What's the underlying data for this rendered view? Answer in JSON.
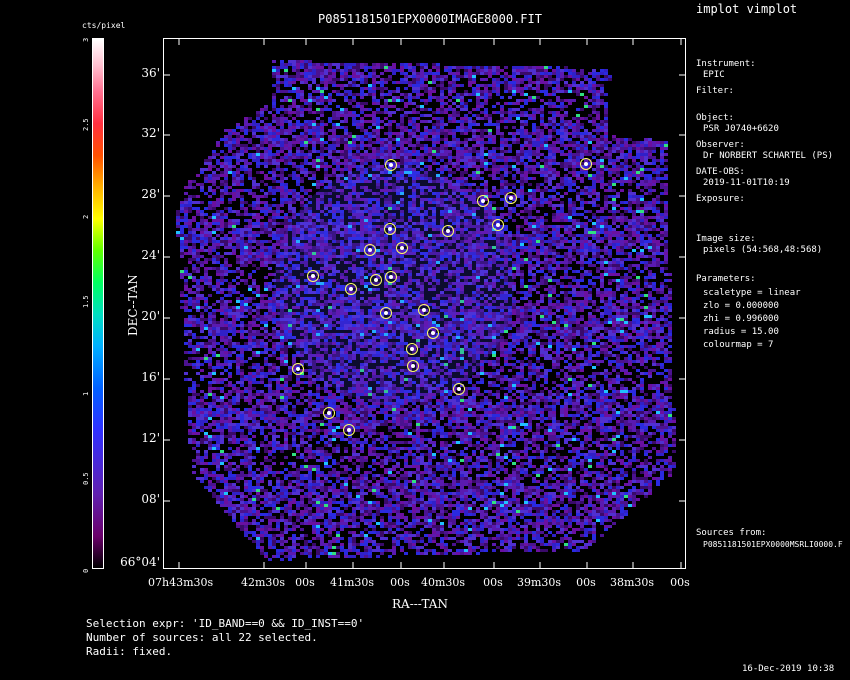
{
  "app": {
    "title": "implot vimplot"
  },
  "image": {
    "filename": "P0851181501EPX0000IMAGE8000.FIT"
  },
  "colorbar": {
    "label": "cts/pixel",
    "ticks": [
      "0",
      "0.5",
      "1",
      "1.5",
      "2",
      "2.5",
      "3"
    ]
  },
  "axes": {
    "ylabel": "DEC--TAN",
    "xlabel": "RA---TAN",
    "yticks": [
      "36'",
      "32'",
      "28'",
      "24'",
      "20'",
      "16'",
      "12'",
      "08'",
      "66°04'"
    ],
    "xticks": [
      "07h43m30s",
      "42m30s",
      "00s",
      "41m30s",
      "00s",
      "40m30s",
      "00s",
      "39m30s",
      "00s",
      "38m30s",
      "00s"
    ]
  },
  "info": {
    "instrument_label": "Instrument:",
    "instrument_value": "EPIC",
    "filter_label": "Filter:",
    "object_label": "Object:",
    "object_value": "PSR J0740+6620",
    "observer_label": "Observer:",
    "observer_value": "Dr NORBERT SCHARTEL (PS)",
    "date_label": "DATE-OBS:",
    "date_value": "2019-11-01T10:19",
    "exposure_label": "Exposure:",
    "image_size_label": "Image size:",
    "image_size_value": "pixels (54:568,48:568)",
    "parameters_label": "Parameters:",
    "param_scaletype": "scaletype = linear",
    "param_zlo": "zlo = 0.000000",
    "param_zhi": "zhi = 0.996000",
    "param_radius": "radius =  15.00",
    "param_colourmap": "colourmap =   7",
    "sources_label": "Sources from:",
    "sources_value": "P0851181501EPX0000MSRLI0000.F"
  },
  "selection": {
    "expr": "Selection expr: 'ID_BAND==0 && ID_INST==0'",
    "count": "Number of sources: all 22 selected.",
    "radii": "Radii: fixed."
  },
  "timestamp": "16-Dec-2019 10:38",
  "colors": {
    "marker": "#ffff66",
    "frame": "#ffffff"
  }
}
